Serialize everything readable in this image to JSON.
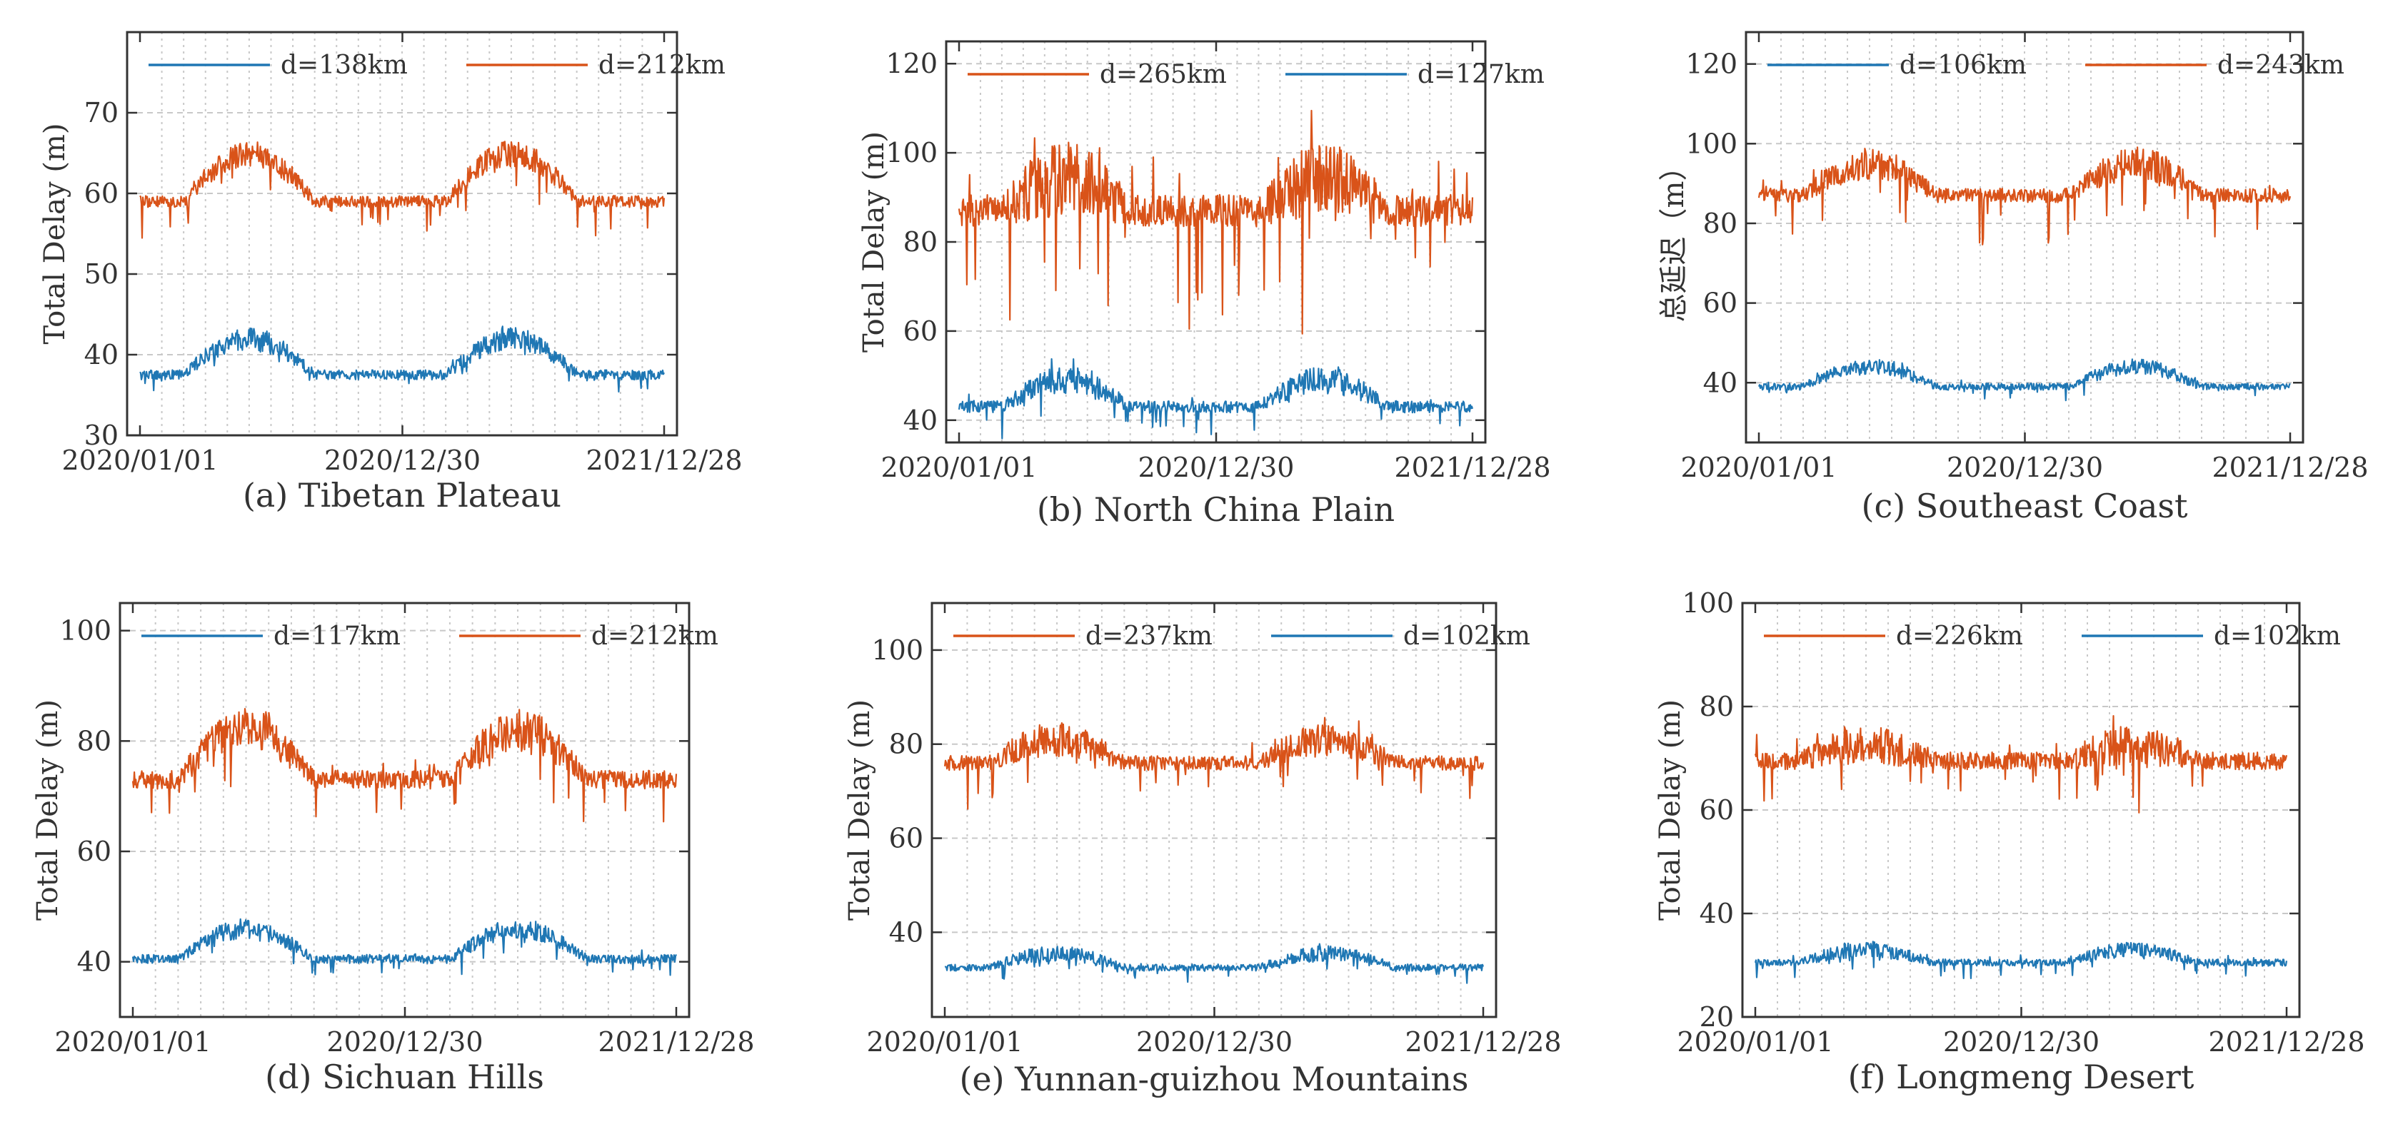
{
  "figure": {
    "colors": {
      "orange": "#d95319",
      "blue": "#1f77b4",
      "grid": "#c8c8c8",
      "axis": "#333333"
    }
  },
  "chart_data": [
    {
      "type": "line",
      "caption": "(a)  Tibetan Plateau",
      "ylabel": "Total Delay  (m)",
      "ylim": [
        30,
        80
      ],
      "yticks": [
        30,
        40,
        50,
        60,
        70
      ],
      "xticks": [
        "2020/01/01",
        "2020/12/30",
        "2021/12/28"
      ],
      "x_range_days": [
        0,
        727
      ],
      "series": [
        {
          "name": "d=138km",
          "color": "blue",
          "base": 37.5,
          "amp": 4.5,
          "noise": 1.0,
          "spikes": 0.6
        },
        {
          "name": "d=212km",
          "color": "orange",
          "base": 59.0,
          "amp": 6.0,
          "noise": 1.2,
          "spikes": 1.5
        }
      ]
    },
    {
      "type": "line",
      "caption": "(b)  North China Plain",
      "ylabel": "Total Delay  (m)",
      "ylim": [
        35,
        125
      ],
      "yticks": [
        40,
        60,
        80,
        100,
        120
      ],
      "xticks": [
        "2020/01/01",
        "2020/12/30",
        "2021/12/28"
      ],
      "x_range_days": [
        0,
        727
      ],
      "series": [
        {
          "name": "d=265km",
          "color": "orange",
          "base": 87.0,
          "amp": 7.0,
          "noise": 6.0,
          "spikes": 10.0
        },
        {
          "name": "d=127km",
          "color": "blue",
          "base": 43.0,
          "amp": 6.0,
          "noise": 2.2,
          "spikes": 2.5
        }
      ]
    },
    {
      "type": "line",
      "caption": "(c)  Southeast Coast",
      "ylabel": "总延迟（m）",
      "ylim": [
        25,
        128
      ],
      "yticks": [
        40,
        60,
        80,
        100,
        120
      ],
      "xticks": [
        "2020/01/01",
        "2020/12/30",
        "2021/12/28"
      ],
      "x_range_days": [
        0,
        727
      ],
      "series": [
        {
          "name": "d=106km",
          "color": "blue",
          "base": 39.0,
          "amp": 5.0,
          "noise": 1.4,
          "spikes": 1.2
        },
        {
          "name": "d=243km",
          "color": "orange",
          "base": 87.0,
          "amp": 8.0,
          "noise": 3.0,
          "spikes": 4.0
        }
      ]
    },
    {
      "type": "line",
      "caption": "(d)  Sichuan Hills",
      "ylabel": "Total Delay  (m)",
      "ylim": [
        30,
        105
      ],
      "yticks": [
        40,
        60,
        80,
        100
      ],
      "xticks": [
        "2020/01/01",
        "2020/12/30",
        "2021/12/28"
      ],
      "x_range_days": [
        0,
        727
      ],
      "series": [
        {
          "name": "d=117km",
          "color": "blue",
          "base": 40.5,
          "amp": 5.5,
          "noise": 1.3,
          "spikes": 1.2
        },
        {
          "name": "d=212km",
          "color": "orange",
          "base": 73.0,
          "amp": 9.0,
          "noise": 2.8,
          "spikes": 3.0
        }
      ]
    },
    {
      "type": "line",
      "caption": "(e)  Yunnan-guizhou Mountains",
      "ylabel": "Total Delay  (m)",
      "ylim": [
        22,
        110
      ],
      "yticks": [
        40,
        60,
        80,
        100
      ],
      "xticks": [
        "2020/01/01",
        "2020/12/30",
        "2021/12/28"
      ],
      "x_range_days": [
        0,
        727
      ],
      "series": [
        {
          "name": "d=237km",
          "color": "orange",
          "base": 76.0,
          "amp": 5.0,
          "noise": 2.6,
          "spikes": 3.0
        },
        {
          "name": "d=102km",
          "color": "blue",
          "base": 32.5,
          "amp": 3.0,
          "noise": 1.2,
          "spikes": 1.0
        }
      ]
    },
    {
      "type": "line",
      "caption": "(f)  Longmeng Desert",
      "ylabel": "Total Delay  (m)",
      "ylim": [
        20,
        100
      ],
      "yticks": [
        20,
        40,
        60,
        80,
        100
      ],
      "xticks": [
        "2020/01/01",
        "2020/12/30",
        "2021/12/28"
      ],
      "x_range_days": [
        0,
        727
      ],
      "series": [
        {
          "name": "d=226km",
          "color": "orange",
          "base": 69.5,
          "amp": 3.0,
          "noise": 2.8,
          "spikes": 3.5
        },
        {
          "name": "d=102km",
          "color": "blue",
          "base": 30.5,
          "amp": 2.5,
          "noise": 1.1,
          "spikes": 1.2
        }
      ]
    }
  ]
}
